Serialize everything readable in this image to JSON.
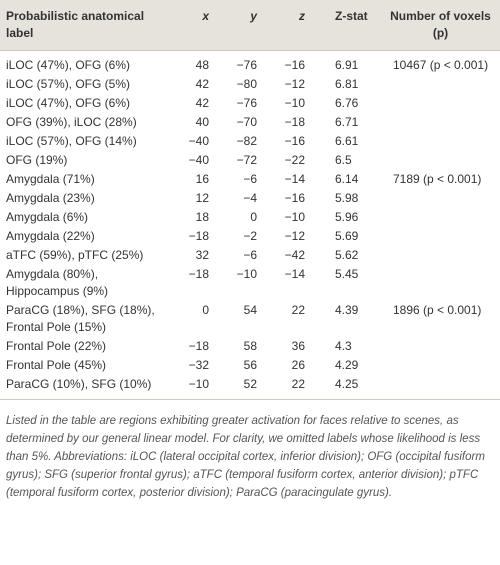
{
  "table": {
    "header": [
      "Probabilistic anatomical label",
      "x",
      "y",
      "z",
      "Z-stat",
      "Number of voxels (p)"
    ],
    "rows": [
      {
        "label": "iLOC (47%), OFG (6%)",
        "x": "48",
        "y": "−76",
        "z": "−16",
        "zstat": "6.91",
        "voxels": "10467 (p < 0.001)"
      },
      {
        "label": "iLOC (57%), OFG (5%)",
        "x": "42",
        "y": "−80",
        "z": "−12",
        "zstat": "6.81"
      },
      {
        "label": "iLOC (47%), OFG (6%)",
        "x": "42",
        "y": "−76",
        "z": "−10",
        "zstat": "6.76"
      },
      {
        "label": "OFG (39%), iLOC (28%)",
        "x": "40",
        "y": "−70",
        "z": "−18",
        "zstat": "6.71"
      },
      {
        "label": "iLOC (57%), OFG (14%)",
        "x": "−40",
        "y": "−82",
        "z": "−16",
        "zstat": "6.61"
      },
      {
        "label": "OFG (19%)",
        "x": "−40",
        "y": "−72",
        "z": "−22",
        "zstat": "6.5"
      },
      {
        "label": "Amygdala (71%)",
        "x": "16",
        "y": "−6",
        "z": "−14",
        "zstat": "6.14",
        "voxels": "7189 (p < 0.001)"
      },
      {
        "label": "Amygdala (23%)",
        "x": "12",
        "y": "−4",
        "z": "−16",
        "zstat": "5.98"
      },
      {
        "label": "Amygdala (6%)",
        "x": "18",
        "y": "0",
        "z": "−10",
        "zstat": "5.96"
      },
      {
        "label": "Amygdala (22%)",
        "x": "−18",
        "y": "−2",
        "z": "−12",
        "zstat": "5.69"
      },
      {
        "label": "aTFC (59%), pTFC (25%)",
        "x": "32",
        "y": "−6",
        "z": "−42",
        "zstat": "5.62"
      },
      {
        "label": "Amygdala (80%), Hippocampus (9%)",
        "x": "−18",
        "y": "−10",
        "z": "−14",
        "zstat": "5.45"
      },
      {
        "label": "ParaCG (18%), SFG (18%), Frontal Pole (15%)",
        "x": "0",
        "y": "54",
        "z": "22",
        "zstat": "4.39",
        "voxels": "1896 (p < 0.001)"
      },
      {
        "label": "Frontal Pole (22%)",
        "x": "−18",
        "y": "58",
        "z": "36",
        "zstat": "4.3"
      },
      {
        "label": "Frontal Pole (45%)",
        "x": "−32",
        "y": "56",
        "z": "26",
        "zstat": "4.29"
      },
      {
        "label": "ParaCG (10%), SFG (10%)",
        "x": "−10",
        "y": "52",
        "z": "22",
        "zstat": "4.25"
      }
    ]
  },
  "footnote": "Listed in the table are regions exhibiting greater activation for faces relative to scenes, as determined by our general linear model. For clarity, we omitted labels whose likelihood is less than 5%. Abbreviations: iLOC (lateral occipital cortex, inferior division); OFG (occipital fusiform gyrus); SFG (superior frontal gyrus); aTFC (temporal fusiform cortex, anterior division); pTFC (temporal fusiform cortex, posterior division); ParaCG (paracingulate gyrus)."
}
